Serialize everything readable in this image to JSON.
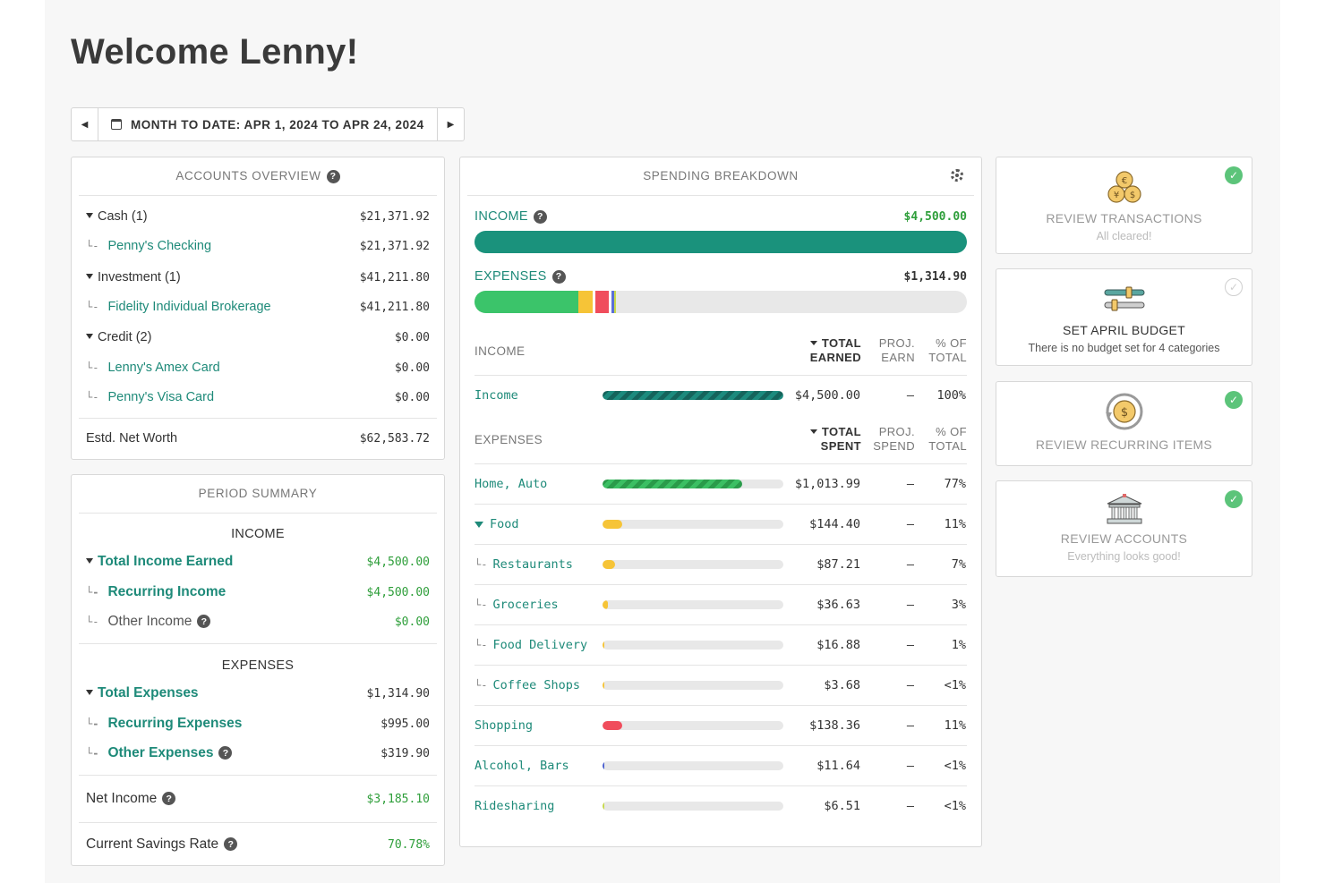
{
  "welcome": "Welcome Lenny!",
  "date_range": "MONTH TO DATE: APR 1, 2024 TO APR 24, 2024",
  "accounts": {
    "title": "ACCOUNTS OVERVIEW",
    "groups": [
      {
        "label": "Cash (1)",
        "value": "$21,371.92",
        "children": [
          {
            "label": "Penny's Checking",
            "value": "$21,371.92"
          }
        ]
      },
      {
        "label": "Investment (1)",
        "value": "$41,211.80",
        "children": [
          {
            "label": "Fidelity Individual Brokerage",
            "value": "$41,211.80"
          }
        ]
      },
      {
        "label": "Credit (2)",
        "value": "$0.00",
        "children": [
          {
            "label": "Lenny's Amex Card",
            "value": "$0.00"
          },
          {
            "label": "Penny's Visa Card",
            "value": "$0.00"
          }
        ]
      }
    ],
    "net_worth_label": "Estd. Net Worth",
    "net_worth_value": "$62,583.72"
  },
  "period": {
    "title": "PERIOD SUMMARY",
    "income_header": "INCOME",
    "total_income_label": "Total Income Earned",
    "total_income_value": "$4,500.00",
    "recurring_income_label": "Recurring Income",
    "recurring_income_value": "$4,500.00",
    "other_income_label": "Other Income",
    "other_income_value": "$0.00",
    "expenses_header": "EXPENSES",
    "total_expenses_label": "Total Expenses",
    "total_expenses_value": "$1,314.90",
    "recurring_expenses_label": "Recurring Expenses",
    "recurring_expenses_value": "$995.00",
    "other_expenses_label": "Other Expenses",
    "other_expenses_value": "$319.90",
    "net_income_label": "Net Income",
    "net_income_value": "$3,185.10",
    "savings_label": "Current Savings Rate",
    "savings_value": "70.78%"
  },
  "spending": {
    "title": "SPENDING BREAKDOWN",
    "income_label": "INCOME",
    "income_value": "$4,500.00",
    "expenses_label": "EXPENSES",
    "expenses_value": "$1,314.90",
    "expense_bar_segments": [
      {
        "pct": 21.0,
        "color": "#3bc46a"
      },
      {
        "pct": 3.0,
        "color": "#f6c437"
      },
      {
        "pct": 0.6,
        "color": "#ffffff"
      },
      {
        "pct": 2.7,
        "color": "#f04d5c"
      },
      {
        "pct": 0.6,
        "color": "#ffffff"
      },
      {
        "pct": 0.4,
        "color": "#5b6fd6"
      },
      {
        "pct": 0.4,
        "color": "#c8d94a"
      }
    ],
    "income_table": {
      "header": "INCOME",
      "col1": [
        "TOTAL",
        "EARNED"
      ],
      "col2": [
        "PROJ.",
        "EARN"
      ],
      "col3": [
        "% OF",
        "TOTAL"
      ],
      "rows": [
        {
          "name": "Income",
          "fill": 100,
          "style": "stripe-teal",
          "amount": "$4,500.00",
          "proj": "–",
          "pct": "100%"
        }
      ]
    },
    "expense_table": {
      "header": "EXPENSES",
      "col1": [
        "TOTAL",
        "SPENT"
      ],
      "col2": [
        "PROJ.",
        "SPEND"
      ],
      "col3": [
        "% OF",
        "TOTAL"
      ],
      "rows": [
        {
          "name": "Home, Auto",
          "fill": 77,
          "style": "stripe-green",
          "amount": "$1,013.99",
          "proj": "–",
          "pct": "77%",
          "kind": "top"
        },
        {
          "name": "Food",
          "fill": 11,
          "color": "#f6c437",
          "amount": "$144.40",
          "proj": "–",
          "pct": "11%",
          "kind": "parent"
        },
        {
          "name": "Restaurants",
          "fill": 7,
          "color": "#f6c437",
          "amount": "$87.21",
          "proj": "–",
          "pct": "7%",
          "kind": "child"
        },
        {
          "name": "Groceries",
          "fill": 3,
          "color": "#f6c437",
          "amount": "$36.63",
          "proj": "–",
          "pct": "3%",
          "kind": "child"
        },
        {
          "name": "Food Delivery",
          "fill": 1,
          "color": "#f6c437",
          "amount": "$16.88",
          "proj": "–",
          "pct": "1%",
          "kind": "child"
        },
        {
          "name": "Coffee Shops",
          "fill": 0.5,
          "color": "#f6c437",
          "amount": "$3.68",
          "proj": "–",
          "pct": "<1%",
          "kind": "child"
        },
        {
          "name": "Shopping",
          "fill": 11,
          "color": "#f04d5c",
          "amount": "$138.36",
          "proj": "–",
          "pct": "11%",
          "kind": "top"
        },
        {
          "name": "Alcohol, Bars",
          "fill": 1,
          "color": "#4a5fd0",
          "amount": "$11.64",
          "proj": "–",
          "pct": "<1%",
          "kind": "top"
        },
        {
          "name": "Ridesharing",
          "fill": 0.6,
          "color": "#c8d94a",
          "amount": "$6.51",
          "proj": "–",
          "pct": "<1%",
          "kind": "top"
        }
      ]
    }
  },
  "tasks": [
    {
      "title": "REVIEW TRANSACTIONS",
      "subtitle": "All cleared!",
      "done": true,
      "icon": "coins-icon"
    },
    {
      "title": "SET APRIL BUDGET",
      "subtitle": "There is no budget set for 4 categories",
      "done": false,
      "icon": "sliders-icon"
    },
    {
      "title": "REVIEW RECURRING ITEMS",
      "subtitle": "",
      "done": true,
      "icon": "recurring-coin-icon"
    },
    {
      "title": "REVIEW ACCOUNTS",
      "subtitle": "Everything looks good!",
      "done": true,
      "icon": "bank-icon"
    }
  ]
}
